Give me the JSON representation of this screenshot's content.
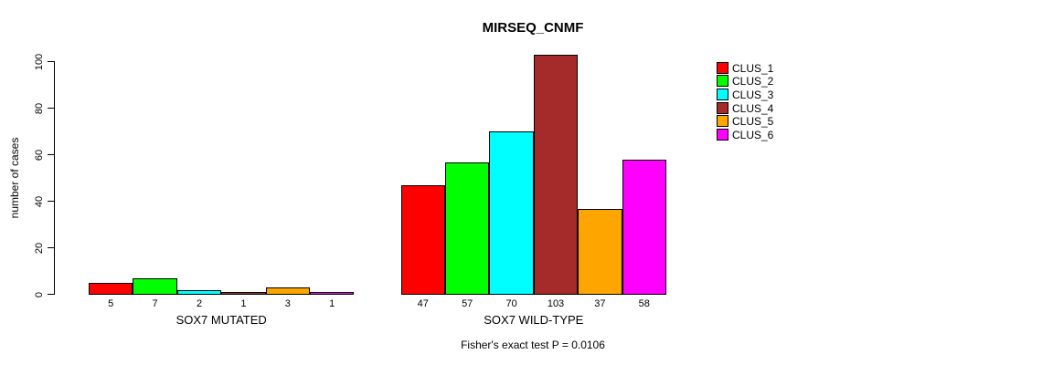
{
  "chart_data": {
    "type": "bar",
    "title": "MIRSEQ_CNMF",
    "ylabel": "number of cases",
    "ylim": [
      0,
      100
    ],
    "yticks": [
      0,
      20,
      40,
      60,
      80,
      100
    ],
    "grid": false,
    "legend_position": "top-right",
    "annotation": "Fisher's exact test P = 0.0106",
    "categories": [
      "SOX7 MUTATED",
      "SOX7 WILD-TYPE"
    ],
    "series": [
      {
        "name": "CLUS_1",
        "color": "#FF0000",
        "values": [
          5,
          47
        ]
      },
      {
        "name": "CLUS_2",
        "color": "#00FF00",
        "values": [
          7,
          57
        ]
      },
      {
        "name": "CLUS_3",
        "color": "#00FFFF",
        "values": [
          2,
          70
        ]
      },
      {
        "name": "CLUS_4",
        "color": "#A52A2A",
        "values": [
          1,
          103
        ]
      },
      {
        "name": "CLUS_5",
        "color": "#FFA500",
        "values": [
          3,
          37
        ]
      },
      {
        "name": "CLUS_6",
        "color": "#FF00FF",
        "values": [
          1,
          58
        ]
      }
    ]
  }
}
